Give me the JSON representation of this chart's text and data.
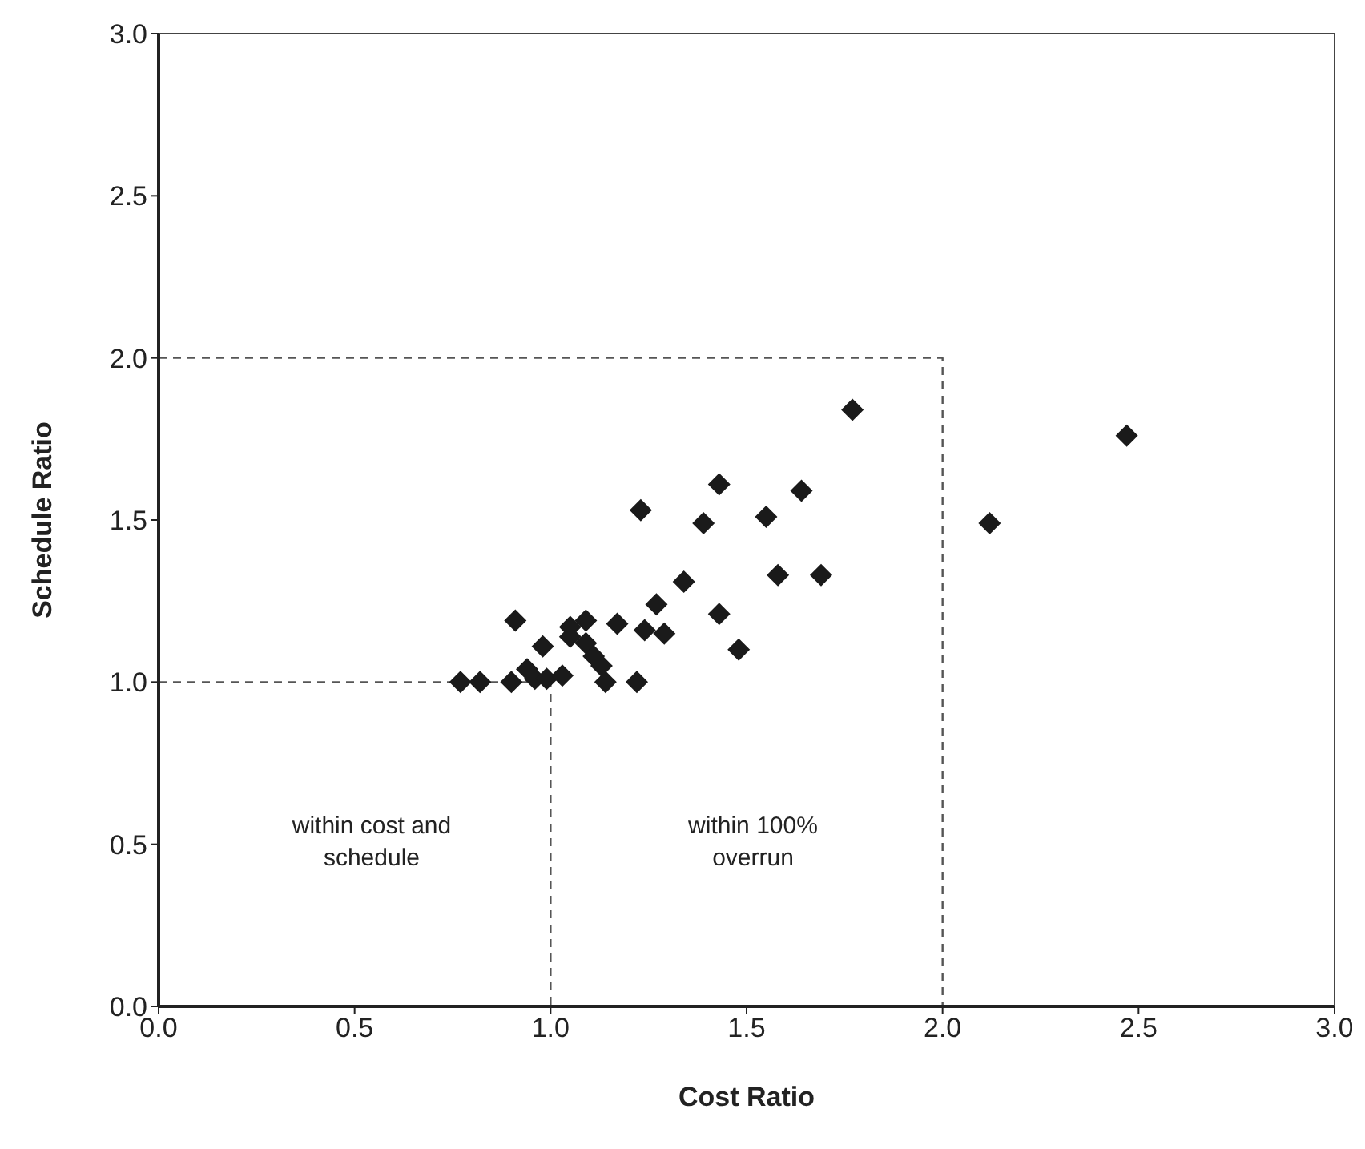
{
  "chart_data": {
    "type": "scatter",
    "xlabel": "Cost Ratio",
    "ylabel": "Schedule Ratio",
    "xlim": [
      0,
      3
    ],
    "ylim": [
      0,
      3
    ],
    "xticks": [
      {
        "value": 0,
        "label": "0.0"
      },
      {
        "value": 0.5,
        "label": "0.5"
      },
      {
        "value": 1,
        "label": "1.0"
      },
      {
        "value": 1.5,
        "label": "1.5"
      },
      {
        "value": 2,
        "label": "2.0"
      },
      {
        "value": 2.5,
        "label": "2.5"
      },
      {
        "value": 3,
        "label": "3.0"
      }
    ],
    "yticks": [
      {
        "value": 0,
        "label": "0.0"
      },
      {
        "value": 0.5,
        "label": "0.5"
      },
      {
        "value": 1,
        "label": "1.0"
      },
      {
        "value": 1.5,
        "label": "1.5"
      },
      {
        "value": 2,
        "label": "2.0"
      },
      {
        "value": 2.5,
        "label": "2.5"
      },
      {
        "value": 3,
        "label": "3.0"
      }
    ],
    "marker": "diamond",
    "series": [
      {
        "color": "#1a1a1a",
        "x": [
          1.77,
          1.43,
          1.64,
          1.23,
          1.39,
          1.55,
          1.58,
          1.69,
          1.34,
          1.27,
          1.43,
          0.91,
          1.17,
          1.24,
          1.29,
          1.48,
          1.05,
          1.09,
          1.05,
          1.09,
          1.11,
          1.13,
          0.98,
          0.94,
          0.96,
          0.99,
          1.03,
          0.9,
          0.77,
          0.82,
          1.14,
          1.22,
          2.47,
          2.12
        ],
        "values": [
          1.84,
          1.61,
          1.59,
          1.53,
          1.49,
          1.51,
          1.33,
          1.33,
          1.31,
          1.24,
          1.21,
          1.19,
          1.18,
          1.16,
          1.15,
          1.1,
          1.17,
          1.19,
          1.14,
          1.12,
          1.08,
          1.05,
          1.11,
          1.04,
          1.01,
          1.01,
          1.02,
          1.0,
          1.0,
          1.0,
          1.0,
          1.0,
          1.76,
          1.49
        ]
      },
      {
        "type": "line",
        "color": "#555555",
        "line_style": "dashed",
        "marker": "none",
        "x": [
          0,
          1,
          1
        ],
        "values": [
          1,
          1,
          0
        ]
      },
      {
        "type": "line",
        "color": "#555555",
        "line_style": "dashed",
        "marker": "none",
        "x": [
          0,
          2,
          2
        ],
        "values": [
          2,
          2,
          0
        ]
      }
    ],
    "annotations": [
      "within cost and schedule",
      "within 100% overrun"
    ]
  }
}
